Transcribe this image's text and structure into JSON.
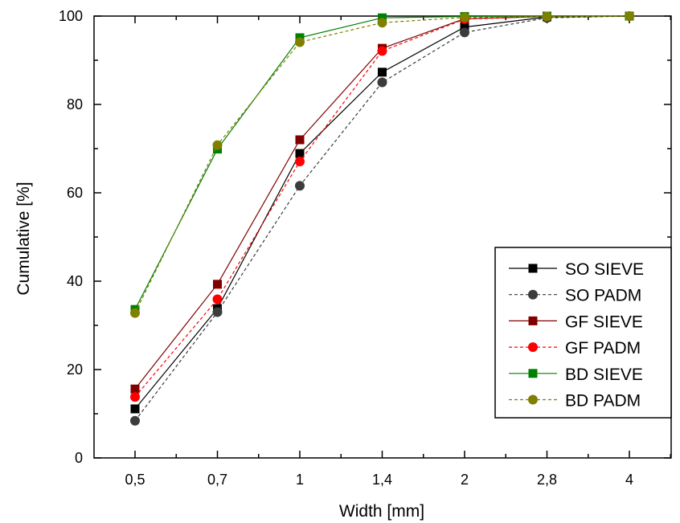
{
  "chart_data": {
    "type": "line",
    "xlabel": "Width [mm]",
    "ylabel": "Cumulative [%]",
    "categories": [
      "0,5",
      "0,7",
      "1",
      "1,4",
      "2",
      "2,8",
      "4"
    ],
    "ylim": [
      0,
      100
    ],
    "yticks": [
      0,
      20,
      40,
      60,
      80,
      100
    ],
    "grid": false,
    "legend_position": "right",
    "series": [
      {
        "name": "SO SIEVE",
        "values": [
          11.1,
          33.8,
          68.9,
          87.3,
          97.5,
          99.8,
          100
        ],
        "color": "#000000",
        "marker": "square",
        "line": "solid"
      },
      {
        "name": "SO PADM",
        "values": [
          8.4,
          33.0,
          61.6,
          85.0,
          96.3,
          99.6,
          100
        ],
        "color": "#3c3c3c",
        "marker": "circle",
        "line": "dashed"
      },
      {
        "name": "GF SIEVE",
        "values": [
          15.6,
          39.3,
          72.0,
          92.7,
          99.4,
          99.9,
          100
        ],
        "color": "#800000",
        "marker": "square",
        "line": "solid"
      },
      {
        "name": "GF PADM",
        "values": [
          13.8,
          35.9,
          67.1,
          92.1,
          99.3,
          99.9,
          100
        ],
        "color": "#ff0000",
        "marker": "circle",
        "line": "dashed"
      },
      {
        "name": "BD SIEVE",
        "values": [
          33.6,
          69.9,
          95.1,
          99.6,
          99.9,
          100,
          100
        ],
        "color": "#008000",
        "marker": "square",
        "line": "solid"
      },
      {
        "name": "BD PADM",
        "values": [
          32.8,
          70.8,
          94.1,
          98.5,
          99.7,
          99.9,
          100
        ],
        "color": "#808000",
        "marker": "circle",
        "line": "dashed"
      }
    ]
  }
}
